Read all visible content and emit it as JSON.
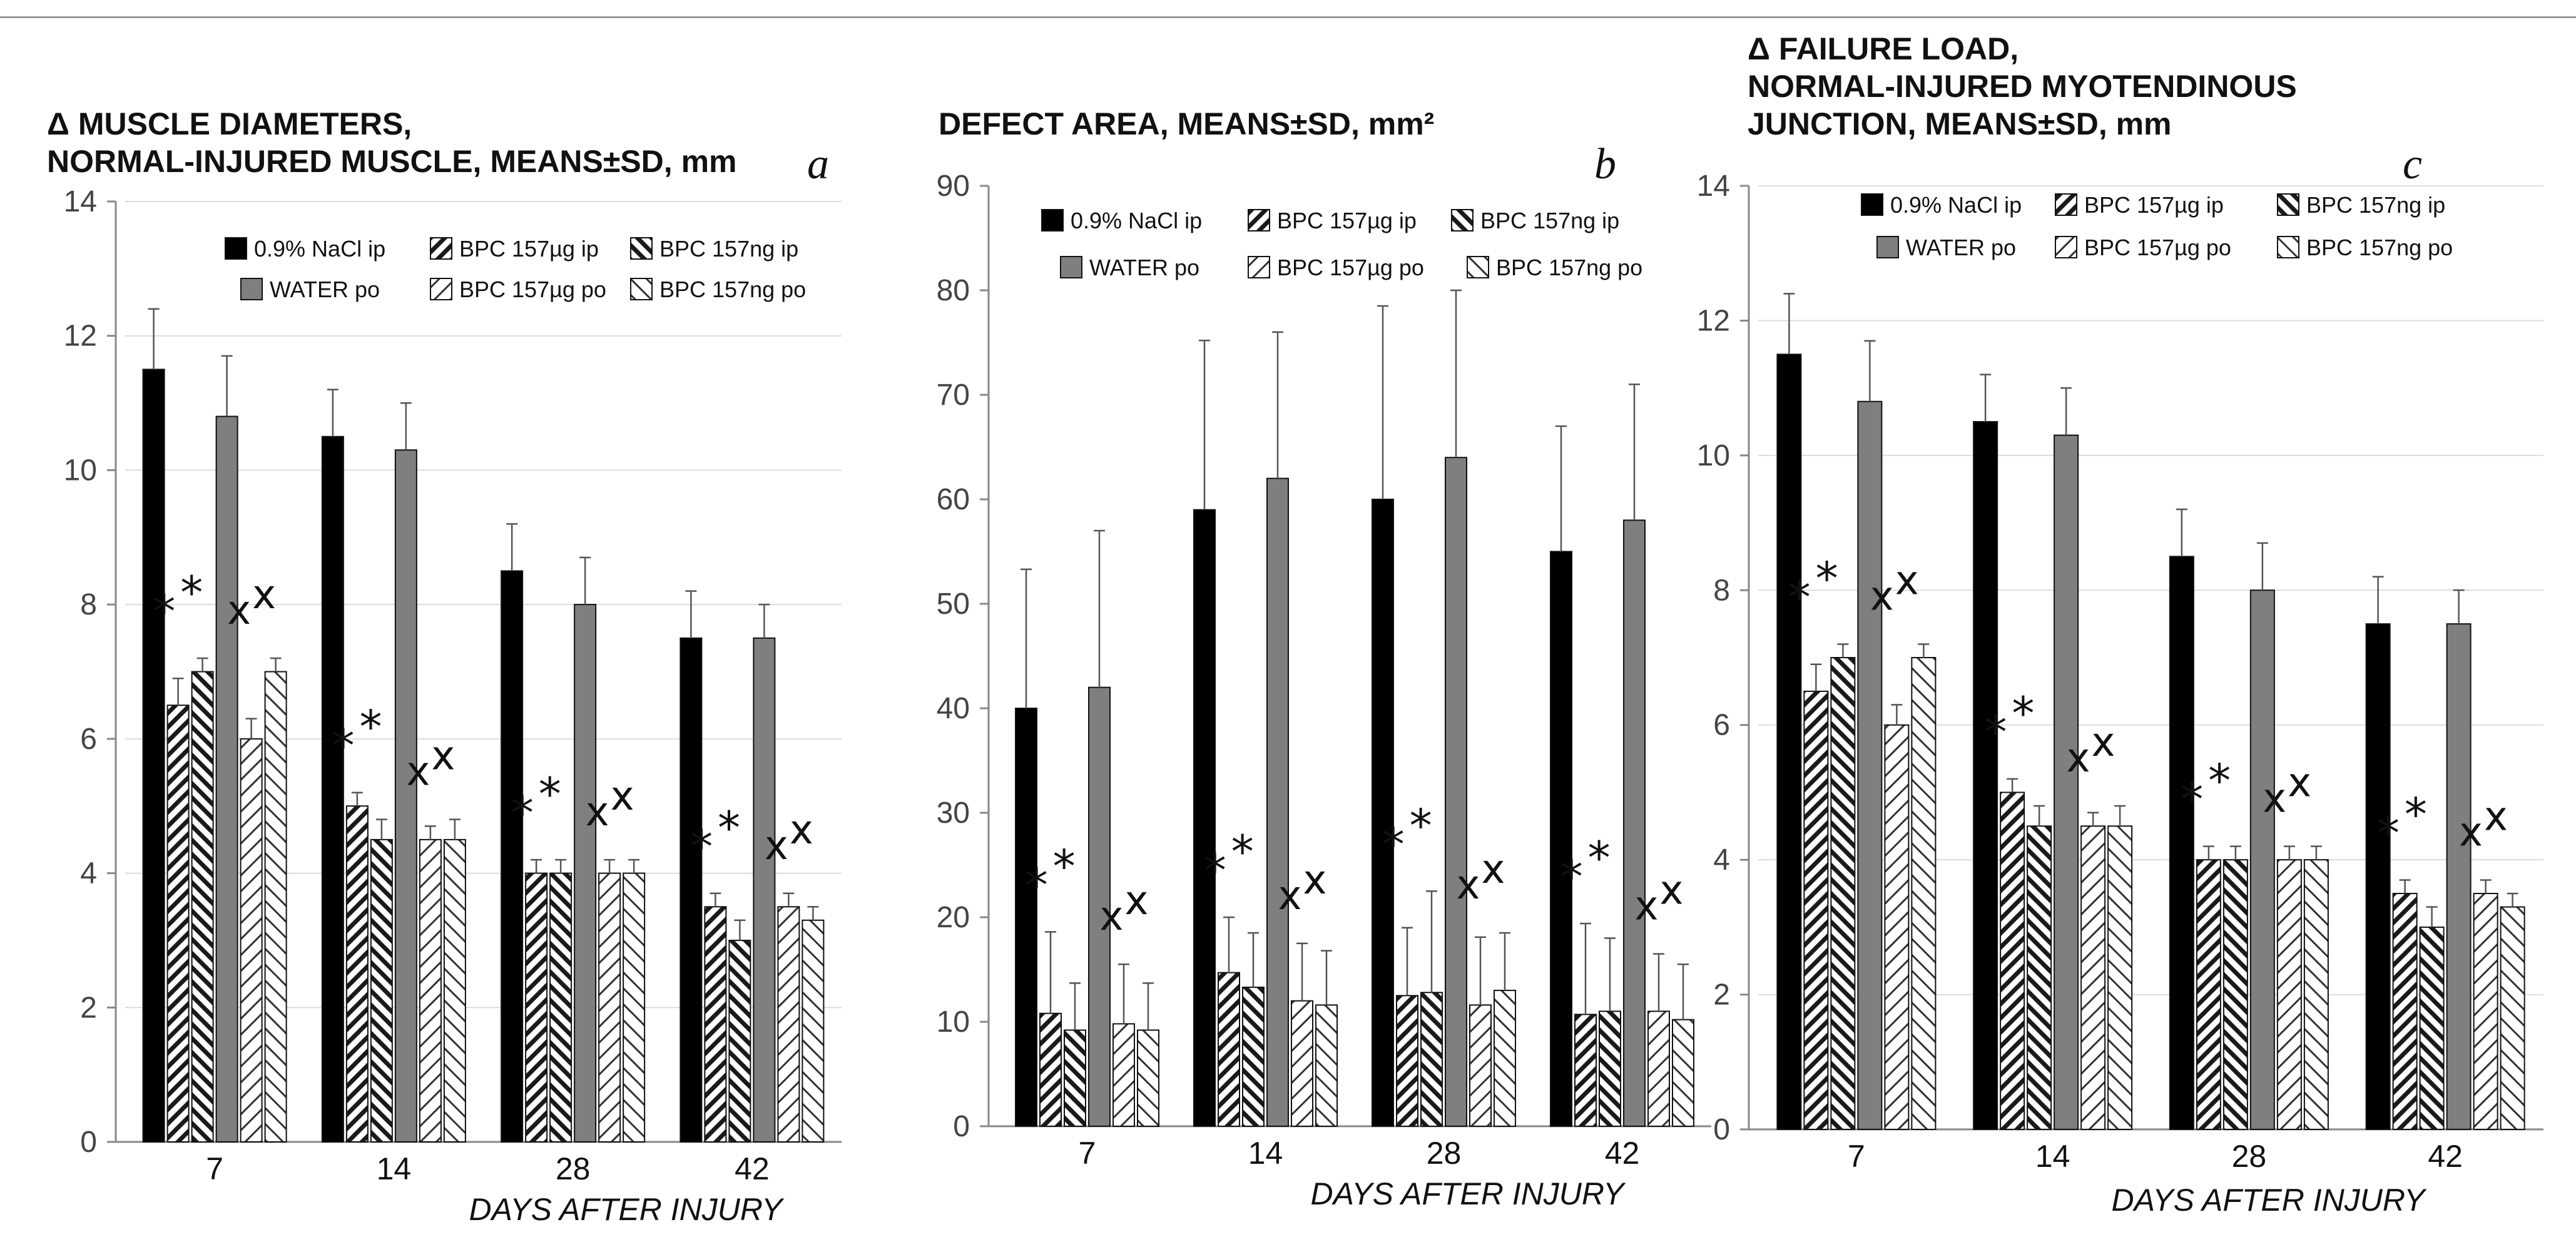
{
  "chart_data": [
    {
      "type": "bar",
      "title_lines": [
        "Δ MUSCLE DIAMETERS,",
        "NORMAL-INJURED MUSCLE, MEANS±SD, mm"
      ],
      "panel_letter": "a",
      "xlabel": "DAYS AFTER INJURY",
      "ylabel": "",
      "ylim": [
        0,
        14
      ],
      "yticks": [
        "0",
        "2",
        "4",
        "6",
        "8",
        "10",
        "12",
        "14"
      ],
      "grid": true,
      "categories": [
        "7",
        "14",
        "28",
        "42"
      ],
      "markers": {
        "star": "*",
        "cross": "x"
      },
      "series": [
        {
          "name": "0.9% NaCl ip",
          "values": [
            11.5,
            10.5,
            8.5,
            7.5
          ],
          "errors": [
            0.9,
            0.7,
            0.7,
            0.7
          ]
        },
        {
          "name": "BPC 157µg ip",
          "values": [
            6.5,
            5.0,
            4.0,
            3.5
          ],
          "errors": [
            0.4,
            0.2,
            0.2,
            0.2
          ]
        },
        {
          "name": "BPC 157ng ip",
          "values": [
            7.0,
            4.5,
            4.0,
            3.0
          ],
          "errors": [
            0.2,
            0.3,
            0.2,
            0.3
          ]
        },
        {
          "name": "WATER po",
          "values": [
            10.8,
            10.3,
            8.0,
            7.5
          ],
          "errors": [
            0.9,
            0.7,
            0.7,
            0.5
          ]
        },
        {
          "name": "BPC 157µg po",
          "values": [
            6.0,
            4.5,
            4.0,
            3.5
          ],
          "errors": [
            0.3,
            0.2,
            0.2,
            0.2
          ]
        },
        {
          "name": "BPC 157ng po",
          "values": [
            7.0,
            4.5,
            4.0,
            3.3
          ],
          "errors": [
            0.2,
            0.3,
            0.2,
            0.2
          ]
        }
      ]
    },
    {
      "type": "bar",
      "title_lines": [
        "DEFECT AREA, MEANS±SD, mm²"
      ],
      "panel_letter": "b",
      "xlabel": "DAYS AFTER INJURY",
      "ylabel": "",
      "ylim": [
        0,
        90
      ],
      "yticks": [
        "0",
        "10",
        "20",
        "30",
        "40",
        "50",
        "60",
        "70",
        "80",
        "90"
      ],
      "grid": false,
      "categories": [
        "7",
        "14",
        "28",
        "42"
      ],
      "markers": {
        "star": "*",
        "cross": "x"
      },
      "series": [
        {
          "name": "0.9% NaCl ip",
          "values": [
            40,
            59,
            60,
            55
          ],
          "errors": [
            13.3,
            16.2,
            18.5,
            12
          ]
        },
        {
          "name": "BPC 157µg ip",
          "values": [
            10.8,
            14.7,
            12.5,
            10.7
          ],
          "errors": [
            7.8,
            5.3,
            6.5,
            8.7
          ]
        },
        {
          "name": "BPC 157ng ip",
          "values": [
            9.2,
            13.3,
            12.8,
            11
          ],
          "errors": [
            4.5,
            5.2,
            9.7,
            7
          ]
        },
        {
          "name": "WATER po",
          "values": [
            42,
            62,
            64,
            58
          ],
          "errors": [
            15,
            14,
            16,
            13
          ]
        },
        {
          "name": "BPC 157µg po",
          "values": [
            9.8,
            12,
            11.6,
            11
          ],
          "errors": [
            5.7,
            5.5,
            6.5,
            5.5
          ]
        },
        {
          "name": "BPC 157ng po",
          "values": [
            9.2,
            11.6,
            13,
            10.2
          ],
          "errors": [
            4.5,
            5.2,
            5.5,
            5.3
          ]
        }
      ]
    },
    {
      "type": "bar",
      "title_lines": [
        "Δ FAILURE LOAD,",
        "NORMAL-INJURED MYOTENDINOUS",
        "JUNCTION, MEANS±SD, mm"
      ],
      "panel_letter": "c",
      "xlabel": "DAYS AFTER INJURY",
      "ylabel": "",
      "ylim": [
        0,
        14
      ],
      "yticks": [
        "0",
        "2",
        "4",
        "6",
        "8",
        "10",
        "12",
        "14"
      ],
      "grid": true,
      "categories": [
        "7",
        "14",
        "28",
        "42"
      ],
      "markers": {
        "star": "*",
        "cross": "x"
      },
      "series": [
        {
          "name": "0.9% NaCl ip",
          "values": [
            11.5,
            10.5,
            8.5,
            7.5
          ],
          "errors": [
            0.9,
            0.7,
            0.7,
            0.7
          ]
        },
        {
          "name": "BPC 157µg ip",
          "values": [
            6.5,
            5.0,
            4.0,
            3.5
          ],
          "errors": [
            0.4,
            0.2,
            0.2,
            0.2
          ]
        },
        {
          "name": "BPC 157ng ip",
          "values": [
            7.0,
            4.5,
            4.0,
            3.0
          ],
          "errors": [
            0.2,
            0.3,
            0.2,
            0.3
          ]
        },
        {
          "name": "WATER po",
          "values": [
            10.8,
            10.3,
            8.0,
            7.5
          ],
          "errors": [
            0.9,
            0.7,
            0.7,
            0.5
          ]
        },
        {
          "name": "BPC 157µg po",
          "values": [
            6.0,
            4.5,
            4.0,
            3.5
          ],
          "errors": [
            0.3,
            0.2,
            0.2,
            0.2
          ]
        },
        {
          "name": "BPC 157ng po",
          "values": [
            7.0,
            4.5,
            4.0,
            3.3
          ],
          "errors": [
            0.2,
            0.3,
            0.2,
            0.2
          ]
        }
      ]
    }
  ],
  "colors": {
    "nacl": "#000000",
    "water": "#7f7f7f",
    "hatch": "#1a1a1a",
    "axis": "#888888",
    "grid": "#dcdcdc"
  }
}
